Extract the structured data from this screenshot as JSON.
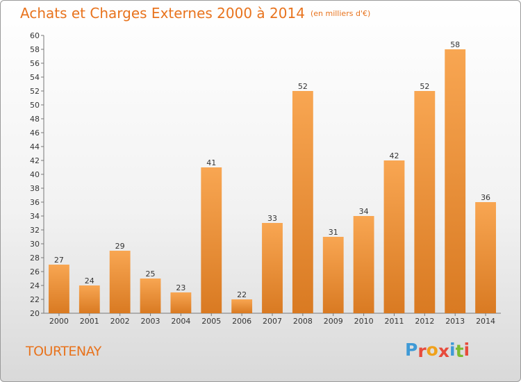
{
  "header": {
    "title": "Achats et Charges Externes 2000 à 2014",
    "subtitle": "(en milliers d'€)"
  },
  "footer": {
    "location": "TOURTENAY",
    "logo_text": "Proxiti"
  },
  "colors": {
    "accent": "#e8731d",
    "bar_light": "#f8a652",
    "bar_dark": "#d97a22",
    "logo_letters": [
      "#3f9ad6",
      "#e74b3c",
      "#f0a11b",
      "#e74b3c",
      "#3f9ad6",
      "#7dbb30",
      "#e74b3c"
    ]
  },
  "chart_data": {
    "type": "bar",
    "title": "Achats et Charges Externes 2000 à 2014",
    "subtitle": "(en milliers d'€)",
    "categories": [
      "2000",
      "2001",
      "2002",
      "2003",
      "2004",
      "2005",
      "2006",
      "2007",
      "2008",
      "2009",
      "2010",
      "2011",
      "2012",
      "2013",
      "2014"
    ],
    "values": [
      27,
      24,
      29,
      25,
      23,
      41,
      22,
      33,
      52,
      31,
      34,
      42,
      52,
      58,
      36
    ],
    "ylim": [
      20,
      60
    ],
    "ytick_step": 2,
    "grid": false,
    "data_labels": true
  }
}
